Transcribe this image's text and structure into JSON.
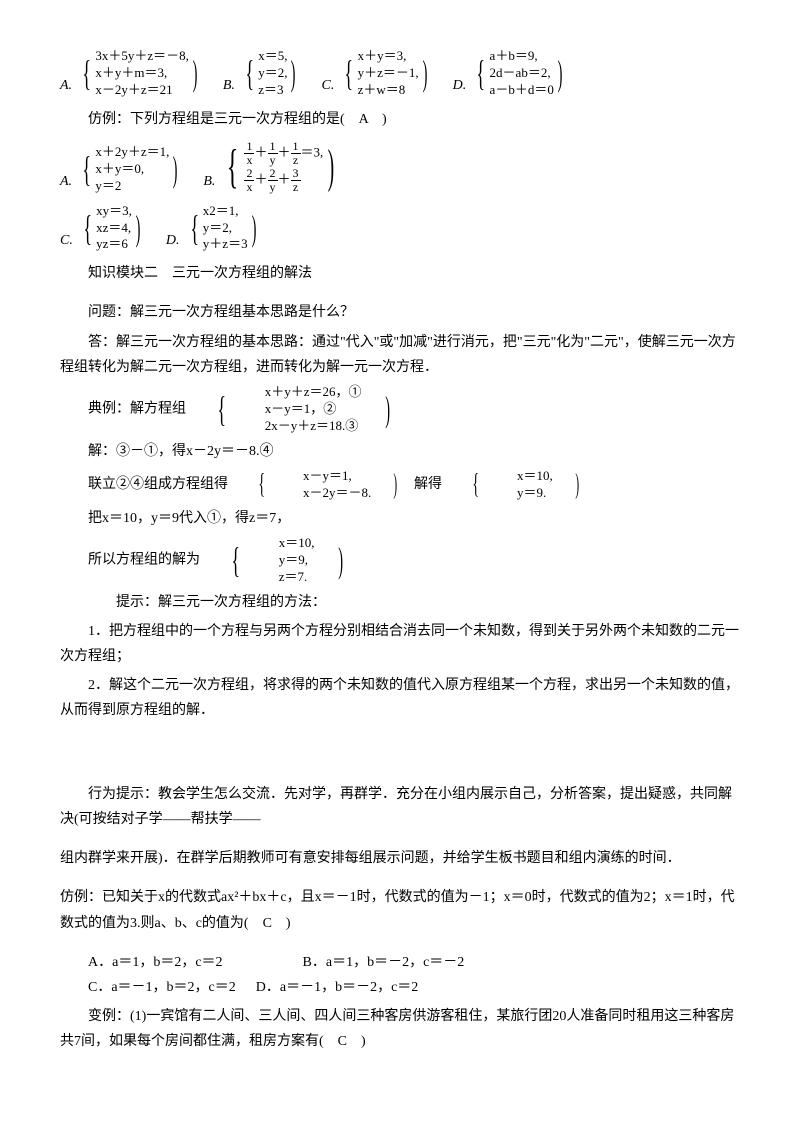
{
  "opt1": {
    "a": {
      "label": "A.",
      "lines": [
        "3x＋5y＋z＝－8,",
        "x＋y＋m＝3,",
        "x－2y＋z＝21"
      ]
    },
    "b": {
      "label": "B.",
      "lines": [
        "x＝5,",
        "y＝2,",
        "z＝3"
      ]
    },
    "c": {
      "label": "C.",
      "lines": [
        "x＋y＝3,",
        "y＋z＝－1,",
        "z＋w＝8"
      ]
    },
    "d": {
      "label": "D.",
      "lines": [
        "a＋b＝9,",
        "2d－ab＝2,",
        "a－b＋d＝0"
      ]
    }
  },
  "q1": "仿例：下列方程组是三元一次方程组的是(　A　)",
  "opt2": {
    "a": {
      "label": "A.",
      "lines": [
        "x＋2y＋z＝1,",
        "x＋y＝0,",
        "y＝2"
      ]
    },
    "b": {
      "label": "B."
    },
    "c": {
      "label": "C.",
      "lines": [
        "xy＝3,",
        "xz＝4,",
        "yz＝6"
      ]
    },
    "d": {
      "label": "D.",
      "lines": [
        "x2＝1,",
        "y＝2,",
        "y＋z＝3"
      ]
    }
  },
  "module2_title": "知识模块二　三元一次方程组的解法",
  "q2": "问题：解三元一次方程组基本思路是什么？",
  "a2": "答：解三元一次方程组的基本思路：通过\"代入\"或\"加减\"进行消元，把\"三元\"化为\"二元\"，使解三元一次方程组转化为解二元一次方程组，进而转化为解一元一次方程．",
  "example_prefix": "典例：解方程组",
  "example_lines": [
    "x＋y＋z＝26，①",
    "x－y＝1，②",
    "2x－y＋z＝18.③"
  ],
  "sol1": "解：③－①，得x－2y＝－8.④",
  "sol2_prefix": "联立②④组成方程组得",
  "sol2_group1": [
    "x－y＝1,",
    "x－2y＝－8."
  ],
  "sol2_mid": "解得",
  "sol2_group2": [
    "x＝10,",
    "y＝9."
  ],
  "sol3": "把x＝10，y＝9代入①，得z＝7，",
  "sol4_prefix": "所以方程组的解为",
  "sol4_lines": [
    "x＝10,",
    "y＝9,",
    "z＝7."
  ],
  "tip_title": "提示：解三元一次方程组的方法：",
  "tip1": "1．把方程组中的一个方程与另两个方程分别相结合消去同一个未知数，得到关于另外两个未知数的二元一次方程组；",
  "tip2": "2．解这个二元一次方程组，将求得的两个未知数的值代入原方程组某一个方程，求出另一个未知数的值，从而得到原方程组的解．",
  "behavior": "行为提示：教会学生怎么交流．先对学，再群学．充分在小组内展示自己，分析答案，提出疑惑，共同解决(可按结对子学——帮扶学——",
  "behavior2": "组内群学来开展)．在群学后期教师可有意安排每组展示问题，并给学生板书题目和组内演练的时间．",
  "fang_example": "仿例：已知关于x的代数式ax²＋bx＋c，且x＝－1时，代数式的值为－1；x＝0时，代数式的值为2；x＝1时，代数式的值为3.则a、b、c的值为(　C　)",
  "opt3": {
    "a": "A．a＝1，b＝2，c＝2",
    "b": "B．a＝1，b＝－2，c＝－2",
    "c": "C．a＝－1，b＝2，c＝2",
    "d": "D．a＝－1，b＝－2，c＝2"
  },
  "variant": "变例：(1)一宾馆有二人间、三人间、四人间三种客房供游客租住，某旅行团20人准备同时租用这三种客房共7间，如果每个房间都住满，租房方案有(　C　)"
}
